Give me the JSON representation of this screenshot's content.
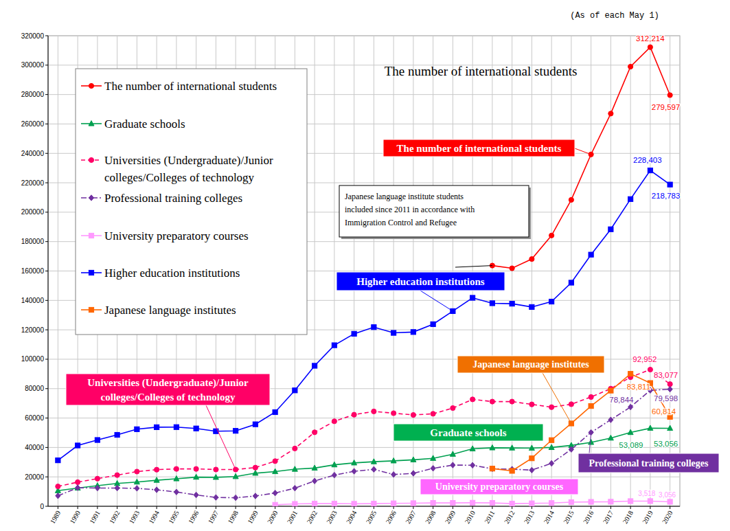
{
  "chart_data": {
    "type": "line",
    "title": "The number of international students",
    "subtitle": "(As of each May 1)",
    "categories": [
      "1989",
      "1990",
      "1991",
      "1992",
      "1993",
      "1994",
      "1995",
      "1996",
      "1997",
      "1998",
      "1999",
      "2000",
      "2001",
      "2002",
      "2003",
      "2004",
      "2005",
      "2006",
      "2007",
      "2008",
      "2009",
      "2010",
      "2011",
      "2012",
      "2013",
      "2014",
      "2015",
      "2016",
      "2017",
      "2018",
      "2019",
      "2020"
    ],
    "ylim": [
      0,
      320000
    ],
    "yticks": [
      0,
      20000,
      40000,
      60000,
      80000,
      100000,
      120000,
      140000,
      160000,
      180000,
      200000,
      220000,
      240000,
      260000,
      280000,
      300000,
      320000
    ],
    "grid": true,
    "legend": "upper left",
    "series": [
      {
        "name": "The number of international students",
        "color": "#ff0000",
        "marker": "circle",
        "line_style": "solid",
        "values": [
          null,
          null,
          null,
          null,
          null,
          null,
          null,
          null,
          null,
          null,
          null,
          null,
          null,
          null,
          null,
          null,
          null,
          null,
          null,
          null,
          null,
          null,
          163697,
          161848,
          168145,
          184155,
          208379,
          239287,
          267042,
          298980,
          312214,
          279597
        ],
        "value_labels": [
          null,
          null,
          null,
          null,
          null,
          null,
          null,
          null,
          null,
          null,
          null,
          null,
          null,
          null,
          null,
          null,
          null,
          null,
          null,
          null,
          null,
          null,
          null,
          null,
          null,
          null,
          null,
          null,
          null,
          null,
          "312,214",
          "279,597"
        ]
      },
      {
        "name": "Graduate schools",
        "color": "#00a050",
        "marker": "triangle",
        "line_style": "solid",
        "values": [
          10600,
          12400,
          14000,
          15500,
          16500,
          17700,
          18700,
          19800,
          19700,
          20200,
          22500,
          23600,
          25200,
          26000,
          28200,
          29500,
          30300,
          30900,
          31600,
          32600,
          35400,
          39100,
          39749,
          39641,
          39567,
          39979,
          41396,
          43478,
          46373,
          50184,
          53089,
          53056
        ],
        "value_labels": [
          null,
          null,
          null,
          null,
          null,
          null,
          null,
          null,
          null,
          null,
          null,
          null,
          null,
          null,
          null,
          null,
          null,
          null,
          null,
          null,
          null,
          null,
          null,
          null,
          null,
          null,
          null,
          null,
          null,
          null,
          "53,089",
          "53,056"
        ]
      },
      {
        "name": "Universities (Undergraduate)/Junior colleges/Colleges of technology",
        "color": "#ff0066",
        "marker": "circle",
        "line_style": "dashed",
        "values": [
          13500,
          16400,
          18800,
          21200,
          23600,
          24900,
          25400,
          25400,
          25000,
          25000,
          26300,
          30700,
          39300,
          50300,
          57800,
          62300,
          64500,
          63300,
          62100,
          62900,
          66800,
          72700,
          71200,
          71200,
          69300,
          67400,
          69400,
          74300,
          80000,
          87800,
          92952,
          83077
        ],
        "value_labels": [
          null,
          null,
          null,
          null,
          null,
          null,
          null,
          null,
          null,
          null,
          null,
          null,
          null,
          null,
          null,
          null,
          null,
          null,
          null,
          null,
          null,
          null,
          null,
          null,
          null,
          null,
          null,
          null,
          null,
          null,
          "92,952",
          "83,077"
        ]
      },
      {
        "name": "Professional training colleges",
        "color": "#7030a0",
        "marker": "diamond",
        "line_style": "dashdot",
        "values": [
          7100,
          12600,
          12400,
          12400,
          12200,
          11200,
          9700,
          7700,
          6000,
          5800,
          7000,
          9000,
          12300,
          17200,
          21200,
          23800,
          25100,
          21600,
          22400,
          25800,
          28000,
          27900,
          25500,
          25200,
          24600,
          29200,
          38700,
          50200,
          58800,
          67500,
          78844,
          79598
        ],
        "value_labels": [
          null,
          null,
          null,
          null,
          null,
          null,
          null,
          null,
          null,
          null,
          null,
          null,
          null,
          null,
          null,
          null,
          null,
          null,
          null,
          null,
          null,
          null,
          null,
          null,
          null,
          null,
          null,
          null,
          null,
          null,
          "78,844",
          "79,598"
        ]
      },
      {
        "name": "University preparatory courses",
        "color": "#ff99ff",
        "marker": "square",
        "line_style": "solid",
        "values": [
          null,
          null,
          null,
          null,
          null,
          null,
          null,
          null,
          null,
          null,
          null,
          1000,
          1600,
          1800,
          1800,
          1700,
          1800,
          2000,
          2100,
          2300,
          2300,
          2400,
          2300,
          1800,
          2000,
          2200,
          2800,
          3000,
          3100,
          3500,
          3518,
          3056
        ],
        "value_labels": [
          null,
          null,
          null,
          null,
          null,
          null,
          null,
          null,
          null,
          null,
          null,
          null,
          null,
          null,
          null,
          null,
          null,
          null,
          null,
          null,
          null,
          null,
          null,
          null,
          null,
          null,
          null,
          null,
          null,
          null,
          "3,518",
          "3,056"
        ]
      },
      {
        "name": "Higher education institutions",
        "color": "#0000ff",
        "marker": "square",
        "line_style": "solid",
        "values": [
          31251,
          41347,
          45066,
          48561,
          52405,
          53787,
          53847,
          52921,
          51047,
          51298,
          55755,
          64011,
          78812,
          95550,
          109508,
          117302,
          121812,
          117927,
          118498,
          123829,
          132720,
          141774,
          138075,
          137756,
          135519,
          139185,
          152062,
          171122,
          188384,
          208901,
          228403,
          218783
        ],
        "value_labels": [
          null,
          null,
          null,
          null,
          null,
          null,
          null,
          null,
          null,
          null,
          null,
          null,
          null,
          null,
          null,
          null,
          null,
          null,
          null,
          null,
          null,
          null,
          null,
          null,
          null,
          null,
          null,
          null,
          null,
          null,
          "228,403",
          "218,783"
        ]
      },
      {
        "name": "Japanese language institutes",
        "color": "#ff6600",
        "marker": "square",
        "line_style": "solid",
        "values": [
          null,
          null,
          null,
          null,
          null,
          null,
          null,
          null,
          null,
          null,
          null,
          null,
          null,
          null,
          null,
          null,
          null,
          null,
          null,
          null,
          null,
          null,
          25622,
          24092,
          32626,
          44970,
          56317,
          68165,
          78658,
          90079,
          83811,
          60814
        ],
        "value_labels": [
          null,
          null,
          null,
          null,
          null,
          null,
          null,
          null,
          null,
          null,
          null,
          null,
          null,
          null,
          null,
          null,
          null,
          null,
          null,
          null,
          null,
          null,
          null,
          null,
          null,
          null,
          null,
          null,
          null,
          null,
          "83,811",
          "60,814"
        ]
      }
    ],
    "annotations": [
      {
        "text": "The number of international students",
        "color": "#ff0000"
      },
      {
        "text": "Higher education institutions",
        "color": "#0000ff"
      },
      {
        "text": "Universities (Undergraduate)/Junior colleges/Colleges of technology",
        "color": "#ff0066"
      },
      {
        "text": "Japanese language institutes",
        "color": "#f07000"
      },
      {
        "text": "Graduate schools",
        "color": "#00b050"
      },
      {
        "text": "Professional training colleges",
        "color": "#7030a0"
      },
      {
        "text": "University preparatory courses",
        "color": "#ff66ff"
      }
    ],
    "note": "Japanese language institute students included since 2011 in accordance with Immigration Control and Refugee"
  }
}
